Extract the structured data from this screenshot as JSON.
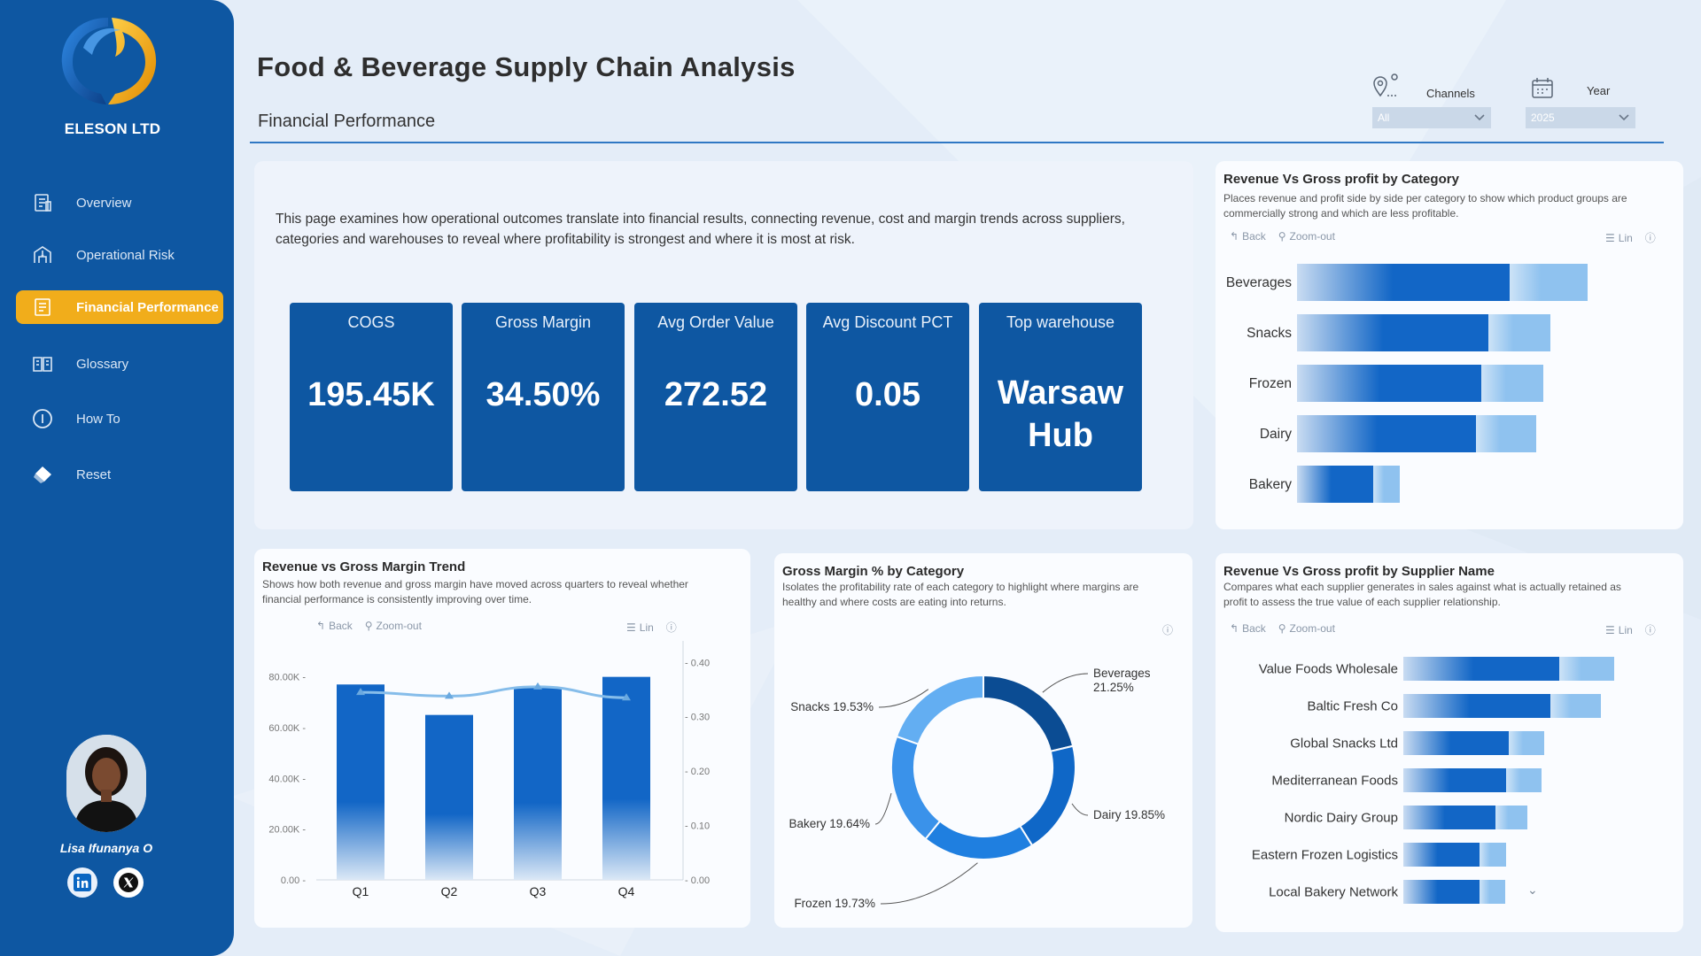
{
  "app": {
    "brand": "ELESON LTD",
    "title": "Food & Beverage Supply Chain Analysis",
    "subtitle": "Financial Performance"
  },
  "sidebar": {
    "items": [
      {
        "label": "Overview",
        "icon": "overview-icon",
        "active": false
      },
      {
        "label": "Operational Risk",
        "icon": "operational-risk-icon",
        "active": false
      },
      {
        "label": "Financial Performance",
        "icon": "financial-performance-icon",
        "active": true
      },
      {
        "label": "Glossary",
        "icon": "glossary-icon",
        "active": false
      },
      {
        "label": "How To",
        "icon": "info-icon",
        "active": false
      },
      {
        "label": "Reset",
        "icon": "eraser-icon",
        "active": false
      }
    ],
    "profile_name": "Lisa Ifunanya O"
  },
  "filters": {
    "channels_label": "Channels",
    "channels_value": "All",
    "year_label": "Year",
    "year_value": "2025"
  },
  "intro": {
    "text": "This page examines how operational outcomes translate into financial results, connecting revenue, cost and margin trends across suppliers, categories and warehouses to reveal where profitability is strongest and where it is most at risk."
  },
  "kpis": [
    {
      "label": "COGS",
      "value": "195.45K"
    },
    {
      "label": "Gross Margin",
      "value": "34.50%"
    },
    {
      "label": "Avg Order Value",
      "value": "272.52"
    },
    {
      "label": "Avg Discount PCT",
      "value": "0.05"
    },
    {
      "label": "Top warehouse",
      "value_line1": "Warsaw",
      "value_line2": "Hub"
    }
  ],
  "toolbar": {
    "back": "Back",
    "zoom_out": "Zoom-out",
    "lin": "Lin"
  },
  "colors": {
    "primary": "#0e57a2",
    "accent": "#f1ad1b",
    "bar_revenue": "#1266c6",
    "bar_profit": "#8fc2ef"
  },
  "charts": {
    "category": {
      "title": "Revenue Vs Gross profit by Category",
      "desc_line1": "Places revenue and profit side by side per category to show which product groups are",
      "desc_line2": "commercially strong and which are less profitable."
    },
    "trend": {
      "title": "Revenue vs Gross Margin Trend",
      "desc_line1": "Shows how both revenue and gross margin have moved across quarters to reveal whether",
      "desc_line2": "financial performance is consistently improving over time."
    },
    "donut": {
      "title": "Gross Margin % by Category",
      "desc_line1": "Isolates the profitability rate of each category to highlight where margins are",
      "desc_line2": "healthy and where costs are eating into returns."
    },
    "supplier": {
      "title": "Revenue Vs Gross profit by Supplier Name",
      "desc_line1": "Compares what each supplier generates in sales against what is actually retained as",
      "desc_line2": "profit to assess the true value of each supplier relationship."
    }
  },
  "chart_data": [
    {
      "type": "bar",
      "orientation": "horizontal",
      "title": "Revenue Vs Gross profit by Category",
      "categories": [
        "Beverages",
        "Snacks",
        "Frozen",
        "Dairy",
        "Bakery"
      ],
      "series": [
        {
          "values": [
            120,
            108,
            104,
            101,
            43
          ]
        },
        {
          "values": [
            44,
            35,
            35,
            34,
            15
          ]
        }
      ]
    },
    {
      "type": "bar",
      "title": "Revenue vs Gross Margin Trend",
      "categories": [
        "Q1",
        "Q2",
        "Q3",
        "Q4"
      ],
      "series": [
        {
          "values": [
            77000,
            65000,
            76000,
            80000
          ],
          "axis": "left"
        },
        {
          "type": "line",
          "values": [
            0.345,
            0.338,
            0.355,
            0.335
          ],
          "axis": "right"
        }
      ],
      "y_ticks": [
        "0.00",
        "20.00K",
        "40.00K",
        "60.00K",
        "80.00K"
      ],
      "y2_ticks": [
        "0.00",
        "0.10",
        "0.20",
        "0.30",
        "0.40"
      ],
      "ylim": [
        0,
        90000
      ],
      "y2lim": [
        0,
        0.42
      ]
    },
    {
      "type": "pie",
      "title": "Gross Margin % by Category",
      "labels": [
        "Beverages",
        "Dairy",
        "Frozen",
        "Bakery",
        "Snacks"
      ],
      "values": [
        21.25,
        19.85,
        19.73,
        19.64,
        19.53
      ],
      "value_labels": [
        "21.25%",
        "19.85%",
        "19.73%",
        "19.64%",
        "19.53%"
      ]
    },
    {
      "type": "bar",
      "orientation": "horizontal",
      "title": "Revenue Vs Gross profit by Supplier Name",
      "categories": [
        "Value Foods Wholesale",
        "Baltic Fresh Co",
        "Global Snacks Ltd",
        "Mediterranean Foods",
        "Nordic Dairy Group",
        "Eastern Frozen Logistics",
        "Local Bakery Network"
      ],
      "series": [
        {
          "values": [
            176,
            166,
            119,
            116,
            104,
            86,
            86
          ]
        },
        {
          "values": [
            62,
            57,
            40,
            40,
            36,
            30,
            29
          ]
        }
      ]
    }
  ]
}
